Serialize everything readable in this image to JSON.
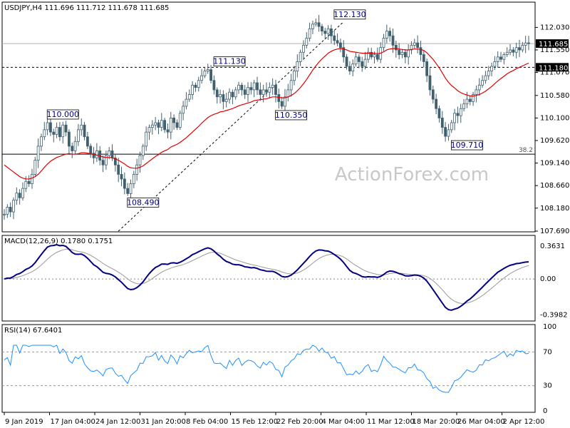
{
  "chart_data": [
    {
      "type": "candlestick",
      "panel": "price",
      "symbol_header": "USDJPY,H4  111.696 111.712 111.678 111.685",
      "watermark": "ActionForex.com",
      "ylim": [
        107.69,
        112.34
      ],
      "yticks": [
        "112.030",
        "111.550",
        "111.070",
        "110.580",
        "110.100",
        "109.620",
        "109.140",
        "108.660",
        "108.180",
        "107.690"
      ],
      "ytick_values": [
        112.03,
        111.55,
        111.07,
        110.58,
        110.1,
        109.62,
        109.14,
        108.66,
        108.18,
        107.69
      ],
      "last_price": {
        "label": "111.685",
        "value": 111.685
      },
      "level_line": {
        "label": "111.180",
        "value": 111.18
      },
      "fib_line": {
        "label": "38.2",
        "value": 109.33
      },
      "annotations": [
        {
          "text": "110.000",
          "bar": 19,
          "value": 110.0,
          "pos": "above"
        },
        {
          "text": "108.490",
          "bar": 45,
          "value": 108.49,
          "pos": "below"
        },
        {
          "text": "111.130",
          "bar": 73,
          "value": 111.13,
          "pos": "above"
        },
        {
          "text": "110.350",
          "bar": 93,
          "value": 110.35,
          "pos": "below"
        },
        {
          "text": "112.130",
          "bar": 112,
          "value": 112.13,
          "pos": "above"
        },
        {
          "text": "109.710",
          "bar": 150,
          "value": 109.71,
          "pos": "below"
        }
      ],
      "trendline": [
        [
          37,
          107.69
        ],
        [
          110,
          112.15
        ]
      ],
      "ma_color": "#e00000",
      "candle_color": "#406070"
    },
    {
      "type": "line",
      "panel": "macd",
      "header": "MACD(12,26,9) 0.1780 0.1751",
      "yticks": [
        "0.3631",
        "0.00",
        "-0.3982"
      ],
      "ytick_values": [
        0.3631,
        0.0,
        -0.3982
      ],
      "ylim": [
        -0.45,
        0.42
      ],
      "main_color": "#000080",
      "signal_color": "#999999"
    },
    {
      "type": "line",
      "panel": "rsi",
      "header": "RSI(14) 67.6401",
      "yticks": [
        "100",
        "70",
        "30",
        "0"
      ],
      "ytick_values": [
        100,
        70,
        30,
        0
      ],
      "ylim": [
        0,
        100
      ],
      "color": "#1e90ff"
    }
  ],
  "x_labels": [
    "9 Jan 2019",
    "17 Jan 04:00",
    "24 Jan 12:00",
    "31 Jan 20:00",
    "8 Feb 04:00",
    "15 Feb 12:00",
    "22 Feb 20:00",
    "4 Mar 04:00",
    "11 Mar 12:00",
    "18 Mar 20:00",
    "26 Mar 04:00",
    "2 Apr 12:00"
  ],
  "series_close": [
    108.05,
    108.2,
    108.1,
    108.35,
    108.5,
    108.4,
    108.6,
    108.75,
    108.7,
    108.9,
    109.2,
    109.5,
    109.7,
    109.85,
    110.0,
    109.8,
    109.75,
    109.9,
    109.7,
    109.95,
    109.8,
    109.5,
    109.4,
    109.6,
    109.85,
    109.95,
    109.7,
    109.5,
    109.35,
    109.25,
    109.4,
    109.2,
    109.1,
    109.3,
    109.4,
    109.25,
    109.1,
    108.9,
    108.8,
    108.6,
    108.49,
    108.7,
    108.9,
    109.1,
    109.3,
    109.5,
    109.8,
    109.9,
    109.95,
    110.0,
    109.9,
    110.05,
    109.85,
    109.8,
    110.1,
    110.0,
    109.9,
    110.2,
    110.35,
    110.5,
    110.6,
    110.8,
    110.75,
    110.9,
    111.0,
    111.1,
    111.13,
    110.9,
    110.7,
    110.55,
    110.6,
    110.45,
    110.5,
    110.65,
    110.55,
    110.7,
    110.8,
    110.7,
    110.6,
    110.75,
    110.7,
    110.85,
    110.7,
    110.6,
    110.7,
    110.65,
    110.75,
    110.8,
    110.6,
    110.45,
    110.35,
    110.55,
    110.7,
    110.9,
    111.1,
    111.3,
    111.5,
    111.65,
    111.8,
    112.0,
    112.1,
    112.13,
    112.05,
    111.95,
    111.9,
    112.0,
    111.85,
    111.75,
    111.7,
    111.6,
    111.4,
    111.2,
    111.1,
    111.25,
    111.4,
    111.3,
    111.2,
    111.35,
    111.5,
    111.4,
    111.45,
    111.35,
    111.6,
    111.8,
    111.95,
    111.85,
    111.65,
    111.55,
    111.45,
    111.5,
    111.4,
    111.55,
    111.65,
    111.7,
    111.6,
    111.45,
    111.3,
    111.0,
    110.7,
    110.5,
    110.3,
    110.1,
    109.9,
    109.71,
    109.85,
    110.0,
    110.2,
    110.15,
    110.3,
    110.4,
    110.5,
    110.45,
    110.6,
    110.7,
    110.8,
    110.9,
    111.0,
    111.1,
    111.2,
    111.3,
    111.4,
    111.35,
    111.45,
    111.5,
    111.55,
    111.5,
    111.6,
    111.55,
    111.65,
    111.7,
    111.685
  ],
  "series_ma": [
    109.1,
    109.05,
    109.0,
    108.95,
    108.9,
    108.85,
    108.82,
    108.8,
    108.8,
    108.82,
    108.85,
    108.9,
    108.97,
    109.05,
    109.12,
    109.18,
    109.22,
    109.26,
    109.28,
    109.31,
    109.33,
    109.34,
    109.33,
    109.33,
    109.34,
    109.36,
    109.36,
    109.35,
    109.34,
    109.32,
    109.31,
    109.29,
    109.27,
    109.26,
    109.26,
    109.25,
    109.23,
    109.2,
    109.16,
    109.12,
    109.07,
    109.04,
    109.03,
    109.03,
    109.05,
    109.08,
    109.13,
    109.18,
    109.23,
    109.28,
    109.32,
    109.37,
    109.4,
    109.43,
    109.48,
    109.51,
    109.54,
    109.58,
    109.63,
    109.68,
    109.74,
    109.8,
    109.86,
    109.92,
    109.99,
    110.05,
    110.11,
    110.15,
    110.18,
    110.2,
    110.23,
    110.24,
    110.26,
    110.28,
    110.3,
    110.33,
    110.36,
    110.38,
    110.4,
    110.42,
    110.44,
    110.47,
    110.48,
    110.49,
    110.5,
    110.51,
    110.53,
    110.55,
    110.55,
    110.54,
    110.53,
    110.53,
    110.55,
    110.58,
    110.62,
    110.68,
    110.75,
    110.83,
    110.92,
    111.02,
    111.12,
    111.21,
    111.29,
    111.36,
    111.42,
    111.48,
    111.52,
    111.55,
    111.57,
    111.58,
    111.57,
    111.55,
    111.52,
    111.51,
    111.5,
    111.49,
    111.48,
    111.48,
    111.48,
    111.48,
    111.48,
    111.47,
    111.48,
    111.51,
    111.55,
    111.57,
    111.58,
    111.58,
    111.57,
    111.56,
    111.55,
    111.55,
    111.56,
    111.57,
    111.57,
    111.56,
    111.54,
    111.49,
    111.42,
    111.35,
    111.26,
    111.17,
    111.06,
    110.95,
    110.86,
    110.79,
    110.74,
    110.68,
    110.64,
    110.61,
    110.59,
    110.57,
    110.57,
    110.58,
    110.6,
    110.63,
    110.67,
    110.72,
    110.77,
    110.83,
    110.89,
    110.94,
    110.99,
    111.04,
    111.08,
    111.11,
    111.15,
    111.18,
    111.21,
    111.24,
    111.27
  ]
}
